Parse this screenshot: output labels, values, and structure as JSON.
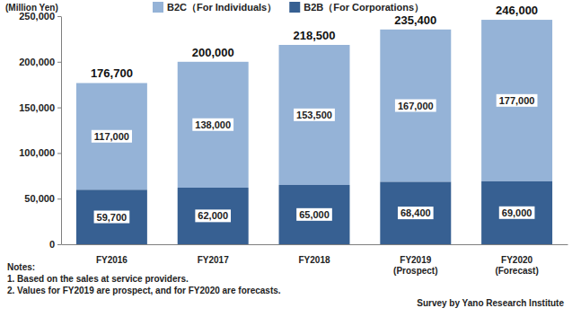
{
  "chart_data": {
    "type": "bar",
    "y_label": "(Million Yen)",
    "categories": [
      "FY2016",
      "FY2017",
      "FY2018",
      "FY2019\n(Prospect)",
      "FY2020\n(Forecast)"
    ],
    "series": [
      {
        "name": "B2C（For Individuals）",
        "color": "#95b3d7",
        "values": [
          117000,
          138000,
          153500,
          167000,
          177000
        ],
        "value_labels": [
          "117,000",
          "138,000",
          "153,500",
          "167,000",
          "177,000"
        ]
      },
      {
        "name": "B2B（For Corporations）",
        "color": "#376092",
        "values": [
          59700,
          62000,
          65000,
          68400,
          69000
        ],
        "value_labels": [
          "59,700",
          "62,000",
          "65,000",
          "68,400",
          "69,000"
        ]
      }
    ],
    "totals": [
      176700,
      200000,
      218500,
      235400,
      246000
    ],
    "total_labels": [
      "176,700",
      "200,000",
      "218,500",
      "235,400",
      "246,000"
    ],
    "ylim": [
      0,
      250000
    ],
    "yticks": [
      0,
      {
        "value": 50000,
        "label": "50,000"
      },
      {
        "value": 100000,
        "label": "100,000"
      },
      {
        "value": 150000,
        "label": "150,000"
      },
      {
        "value": 200000,
        "label": "200,000"
      },
      {
        "value": 250000,
        "label": "250,000"
      }
    ],
    "grid": false,
    "stacked": true,
    "data_labels": true,
    "legend": "top",
    "notes": [
      "Notes:",
      "1. Based on the sales at service providers.",
      "2. Values for FY2019 are prospect, and for FY2020 are forecasts."
    ],
    "source": "Survey by Yano Research Institute"
  }
}
